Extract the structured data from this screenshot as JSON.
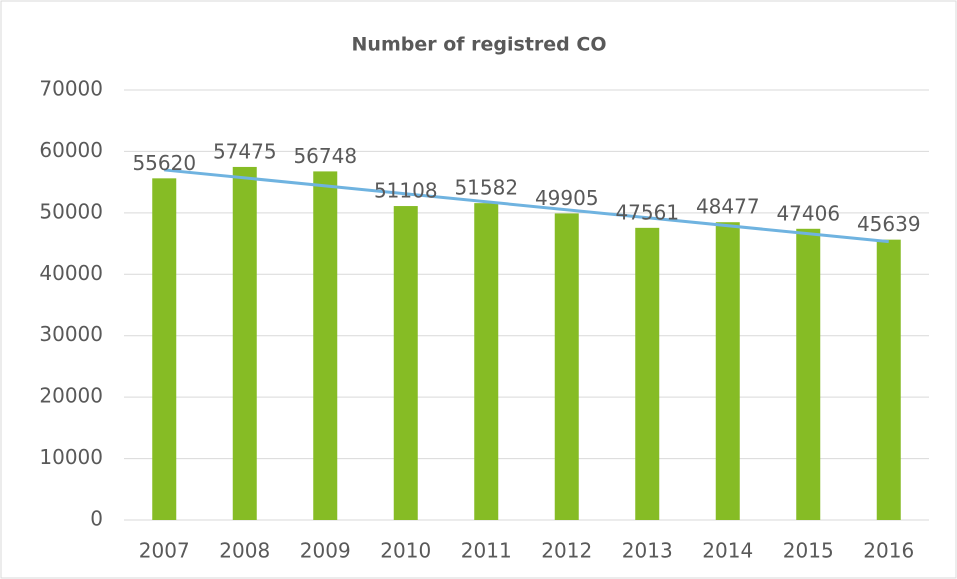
{
  "chart_data": {
    "type": "bar",
    "title": "Number of registred CO",
    "categories": [
      "2007",
      "2008",
      "2009",
      "2010",
      "2011",
      "2012",
      "2013",
      "2014",
      "2015",
      "2016"
    ],
    "values": [
      55620,
      57475,
      56748,
      51108,
      51582,
      49905,
      47561,
      48477,
      47406,
      45639
    ],
    "color": "#86bc25",
    "trendline": "linear",
    "trendline_color": "#6fb3e0",
    "ylim": [
      0,
      70000
    ],
    "yticks": [
      0,
      10000,
      20000,
      30000,
      40000,
      50000,
      60000,
      70000
    ],
    "grid": true,
    "data_labels": true
  }
}
